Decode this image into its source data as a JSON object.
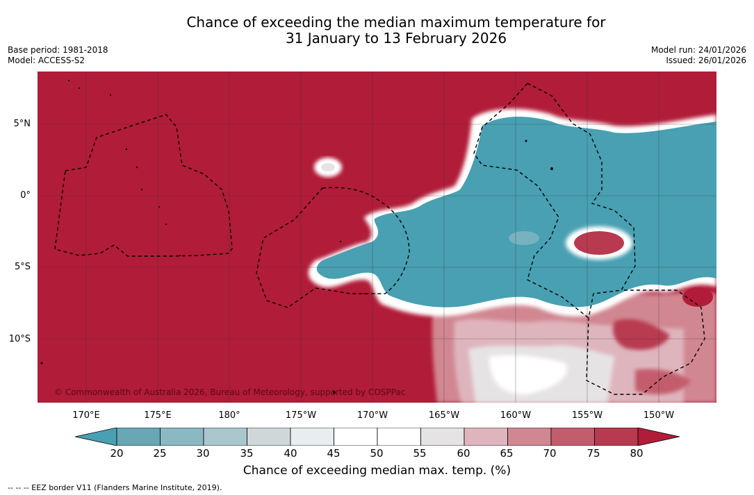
{
  "title": {
    "line1": "Chance of exceeding the median maximum temperature for",
    "line2": "31 January to 13 February 2026"
  },
  "meta": {
    "base_period": "Base period: 1981-2018",
    "model": "Model: ACCESS-S2",
    "model_run": "Model run: 24/01/2026",
    "issued": "Issued: 26/01/2026"
  },
  "map": {
    "copyright": "© Commonwealth of Australia 2026, Bureau of Meteorology, supported by COSPPac",
    "lat_labels": [
      "5°N",
      "0°",
      "5°S",
      "10°S"
    ],
    "lon_labels": [
      "170°E",
      "175°E",
      "180°",
      "175°W",
      "170°W",
      "165°W",
      "160°W",
      "155°W",
      "150°W"
    ],
    "colors": {
      "high": "#b11c38",
      "low": "#48a0b2",
      "neutral": "#ffffff"
    }
  },
  "colorbar": {
    "ticks": [
      "20",
      "25",
      "30",
      "35",
      "40",
      "45",
      "50",
      "55",
      "60",
      "65",
      "70",
      "75",
      "80"
    ],
    "colors": [
      "#48a0b2",
      "#68a7b3",
      "#8ab9c4",
      "#a9c7cc",
      "#cfd7d9",
      "#e8edf0",
      "#ffffff",
      "#ffffff",
      "#e6e3e5",
      "#dfb5bd",
      "#d18791",
      "#c35d6d",
      "#b83a50",
      "#b11c38"
    ],
    "label": "Chance of exceeding median max. temp. (%)"
  },
  "footnote": "--  --  -- EEZ border V11 (Flanders Marine Institute, 2019)."
}
